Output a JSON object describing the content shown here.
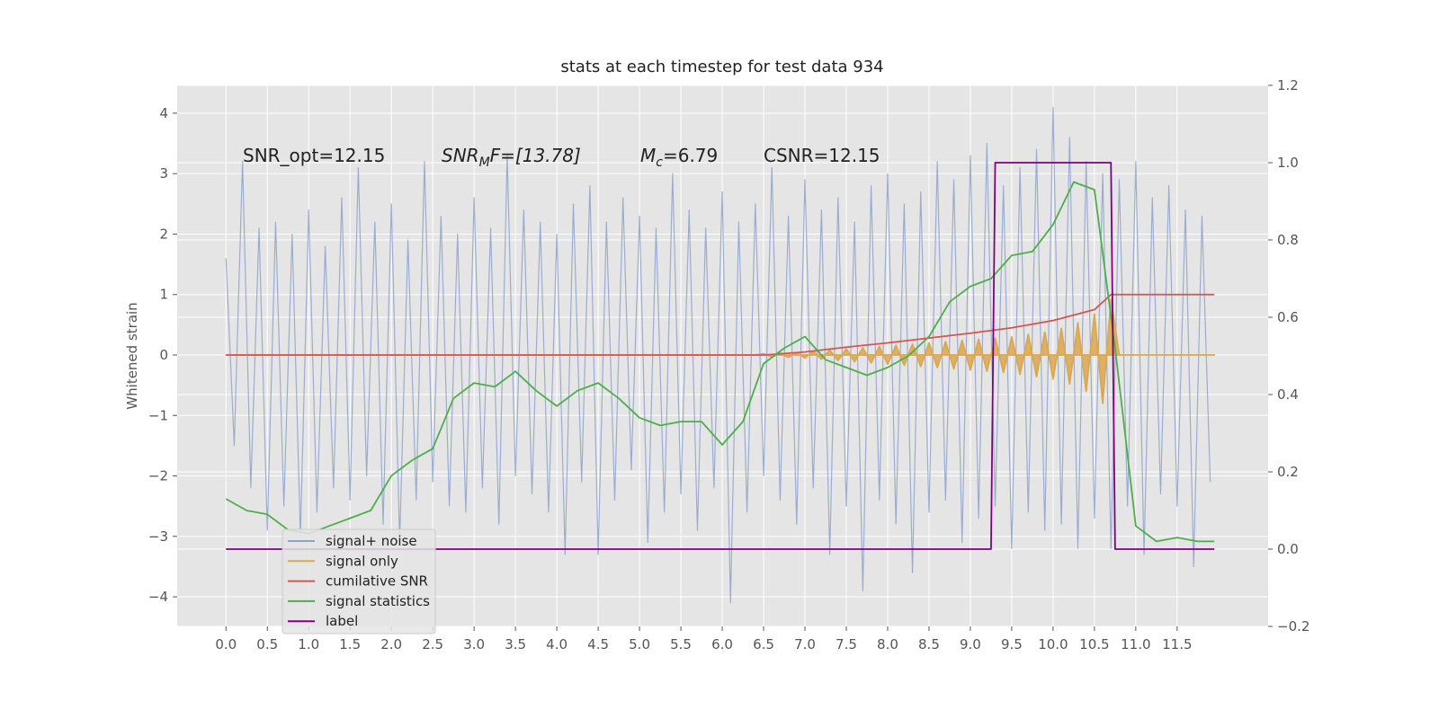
{
  "chart_data": {
    "type": "line",
    "title": "stats at each timestep for test data 934",
    "y_label": "Whitened strain",
    "grid": true,
    "legend_position": "lower left",
    "xlim": [
      -0.59,
      12.6
    ],
    "ylim": [
      -4.49,
      4.46
    ],
    "y2lim": [
      -0.2,
      1.2
    ],
    "xticks": [
      {
        "value": 0,
        "label": "0.0"
      },
      {
        "value": 0.5,
        "label": "0.5"
      },
      {
        "value": 1,
        "label": "1.0"
      },
      {
        "value": 1.5,
        "label": "1.5"
      },
      {
        "value": 2,
        "label": "2.0"
      },
      {
        "value": 2.5,
        "label": "2.5"
      },
      {
        "value": 3,
        "label": "3.0"
      },
      {
        "value": 3.5,
        "label": "3.5"
      },
      {
        "value": 4,
        "label": "4.0"
      },
      {
        "value": 4.5,
        "label": "4.5"
      },
      {
        "value": 5,
        "label": "5.0"
      },
      {
        "value": 5.5,
        "label": "5.5"
      },
      {
        "value": 6,
        "label": "6.0"
      },
      {
        "value": 6.5,
        "label": "6.5"
      },
      {
        "value": 7,
        "label": "7.0"
      },
      {
        "value": 7.5,
        "label": "7.5"
      },
      {
        "value": 8,
        "label": "8.0"
      },
      {
        "value": 8.5,
        "label": "8.5"
      },
      {
        "value": 9,
        "label": "9.0"
      },
      {
        "value": 9.5,
        "label": "9.5"
      },
      {
        "value": 10,
        "label": "10.0"
      },
      {
        "value": 10.5,
        "label": "10.5"
      },
      {
        "value": 11,
        "label": "11.0"
      },
      {
        "value": 11.5,
        "label": "11.5"
      }
    ],
    "yticks": [
      {
        "value": -4,
        "label": "−4"
      },
      {
        "value": -3,
        "label": "−3"
      },
      {
        "value": -2,
        "label": "−2"
      },
      {
        "value": -1,
        "label": "−1"
      },
      0,
      1,
      2,
      3,
      4
    ],
    "y2ticks": [
      {
        "value": -0.2,
        "label": "−0.2"
      },
      {
        "value": 0,
        "label": "0.0"
      },
      {
        "value": 0.2,
        "label": "0.2"
      },
      {
        "value": 0.4,
        "label": "0.4"
      },
      {
        "value": 0.6,
        "label": "0.6"
      },
      {
        "value": 0.8,
        "label": "0.8"
      },
      {
        "value": 1.0,
        "label": "1.0"
      },
      {
        "value": 1.2,
        "label": "1.2"
      }
    ],
    "annotations": [
      {
        "text": "SNR_opt=12.15"
      },
      {
        "text": "SNR",
        "subscript": "M",
        "suffix": "F=[13.78]"
      },
      {
        "text": "M",
        "subscript": "c",
        "suffix": "=6.79"
      },
      {
        "text": "CSNR=12.15"
      }
    ],
    "series": [
      {
        "name": "signal+ noise",
        "color": "#8da3cc",
        "axis": "y",
        "x": [
          0,
          0.1,
          0.2,
          0.3,
          0.4,
          0.5,
          0.6,
          0.7,
          0.8,
          0.9,
          1,
          1.1,
          1.2,
          1.3,
          1.4,
          1.5,
          1.6,
          1.7,
          1.8,
          1.9,
          2,
          2.1,
          2.2,
          2.3,
          2.4,
          2.5,
          2.6,
          2.7,
          2.8,
          2.9,
          3,
          3.1,
          3.2,
          3.3,
          3.4,
          3.5,
          3.6,
          3.7,
          3.8,
          3.9,
          4,
          4.1,
          4.2,
          4.3,
          4.4,
          4.5,
          4.6,
          4.7,
          4.8,
          4.9,
          5,
          5.1,
          5.2,
          5.3,
          5.4,
          5.5,
          5.6,
          5.7,
          5.8,
          5.9,
          6,
          6.1,
          6.2,
          6.3,
          6.4,
          6.5,
          6.6,
          6.7,
          6.8,
          6.9,
          7,
          7.1,
          7.2,
          7.3,
          7.4,
          7.5,
          7.6,
          7.7,
          7.8,
          7.9,
          8,
          8.1,
          8.2,
          8.3,
          8.4,
          8.5,
          8.6,
          8.7,
          8.8,
          8.9,
          9,
          9.1,
          9.2,
          9.3,
          9.4,
          9.5,
          9.6,
          9.7,
          9.8,
          9.9,
          10,
          10.1,
          10.2,
          10.3,
          10.4,
          10.5,
          10.6,
          10.7,
          10.8,
          10.9,
          11,
          11.1,
          11.2,
          11.3,
          11.4,
          11.5,
          11.6,
          11.7,
          11.8,
          11.9
        ],
        "values": [
          1.6,
          -1.5,
          3.2,
          -2.2,
          2.1,
          -2.9,
          2.2,
          -2.5,
          2.0,
          -3.0,
          2.4,
          -2.6,
          1.8,
          -2.2,
          2.6,
          -2.4,
          3.1,
          -2.0,
          2.2,
          -2.8,
          2.5,
          -3.1,
          1.9,
          -2.4,
          3.2,
          -2.1,
          2.3,
          -2.5,
          2.0,
          -2.6,
          2.6,
          -2.2,
          2.1,
          -2.8,
          3.3,
          -2.0,
          2.4,
          -2.3,
          2.2,
          -2.6,
          2.0,
          -3.3,
          2.5,
          -2.1,
          2.8,
          -3.3,
          2.2,
          -2.4,
          2.6,
          -1.9,
          2.3,
          -3.1,
          2.1,
          -2.6,
          3.0,
          -2.3,
          2.4,
          -2.9,
          2.1,
          -2.2,
          2.7,
          -4.1,
          2.2,
          -2.6,
          2.5,
          -2.0,
          3.1,
          -2.4,
          2.3,
          -2.8,
          2.9,
          -2.2,
          2.4,
          -3.3,
          2.6,
          -2.5,
          2.2,
          -3.9,
          2.8,
          -2.4,
          3.0,
          -2.8,
          2.5,
          -3.6,
          2.7,
          -2.6,
          3.2,
          -2.4,
          2.9,
          -3.1,
          3.3,
          -2.7,
          3.5,
          -2.5,
          2.8,
          -3.2,
          3.1,
          -2.6,
          3.4,
          -2.9,
          4.1,
          -2.8,
          3.6,
          -3.2,
          3.2,
          -2.7,
          3.0,
          -3.2,
          2.9,
          -2.5,
          3.2,
          -3.3,
          2.6,
          -2.3,
          2.8,
          -2.5,
          2.4,
          -3.5,
          2.3,
          -2.1
        ]
      },
      {
        "name": "signal only",
        "color": "#dca74e",
        "axis": "y",
        "x": [
          0,
          6.4,
          6.5,
          6.6,
          6.7,
          6.8,
          6.9,
          7,
          7.1,
          7.2,
          7.3,
          7.4,
          7.5,
          7.6,
          7.7,
          7.8,
          7.9,
          8,
          8.1,
          8.2,
          8.3,
          8.4,
          8.5,
          8.6,
          8.7,
          8.8,
          8.9,
          9,
          9.1,
          9.2,
          9.3,
          9.4,
          9.5,
          9.6,
          9.7,
          9.8,
          9.9,
          10,
          10.1,
          10.2,
          10.3,
          10.4,
          10.5,
          10.6,
          10.7,
          10.8,
          11.95
        ],
        "values": [
          0,
          0,
          0.02,
          -0.03,
          0.03,
          -0.04,
          0.04,
          -0.05,
          0.06,
          -0.07,
          0.08,
          -0.09,
          0.1,
          -0.11,
          0.12,
          -0.13,
          0.14,
          -0.15,
          0.16,
          -0.17,
          0.18,
          -0.19,
          0.2,
          -0.21,
          0.22,
          -0.23,
          0.24,
          -0.25,
          0.26,
          -0.27,
          0.28,
          -0.29,
          0.3,
          -0.32,
          0.34,
          -0.36,
          0.38,
          -0.4,
          0.44,
          -0.48,
          0.53,
          -0.6,
          0.68,
          -0.8,
          0.92,
          0,
          0
        ]
      },
      {
        "name": "cumilative SNR",
        "color": "#d9534f",
        "axis": "y",
        "x": [
          0,
          6.5,
          7,
          7.5,
          8,
          8.5,
          9,
          9.5,
          10,
          10.5,
          10.7,
          11.95
        ],
        "values": [
          0,
          0,
          0.05,
          0.13,
          0.2,
          0.28,
          0.36,
          0.45,
          0.57,
          0.75,
          1.0,
          1.0
        ]
      },
      {
        "name": "signal statistics",
        "color": "#4daf4a",
        "axis": "y2",
        "x": [
          0,
          0.25,
          0.5,
          0.75,
          1,
          1.25,
          1.5,
          1.75,
          2,
          2.25,
          2.5,
          2.75,
          3,
          3.25,
          3.5,
          3.75,
          4,
          4.25,
          4.5,
          4.75,
          5,
          5.25,
          5.5,
          5.75,
          6,
          6.25,
          6.5,
          6.75,
          7,
          7.25,
          7.5,
          7.75,
          8,
          8.25,
          8.5,
          8.75,
          9,
          9.25,
          9.5,
          9.75,
          10,
          10.25,
          10.5,
          10.75,
          11,
          11.25,
          11.5,
          11.75,
          11.95
        ],
        "values": [
          0.13,
          0.1,
          0.09,
          0.05,
          0.04,
          0.06,
          0.08,
          0.1,
          0.19,
          0.23,
          0.26,
          0.39,
          0.43,
          0.42,
          0.46,
          0.41,
          0.37,
          0.41,
          0.43,
          0.39,
          0.34,
          0.32,
          0.33,
          0.33,
          0.27,
          0.33,
          0.48,
          0.52,
          0.55,
          0.49,
          0.47,
          0.45,
          0.47,
          0.5,
          0.55,
          0.64,
          0.68,
          0.7,
          0.76,
          0.77,
          0.84,
          0.95,
          0.93,
          0.52,
          0.06,
          0.02,
          0.03,
          0.02,
          0.02
        ]
      },
      {
        "name": "label",
        "color": "#800080",
        "axis": "y2",
        "x": [
          0,
          9.25,
          9.3,
          10.7,
          10.75,
          11.95
        ],
        "values": [
          0,
          0,
          1,
          1,
          0,
          0
        ]
      }
    ]
  }
}
